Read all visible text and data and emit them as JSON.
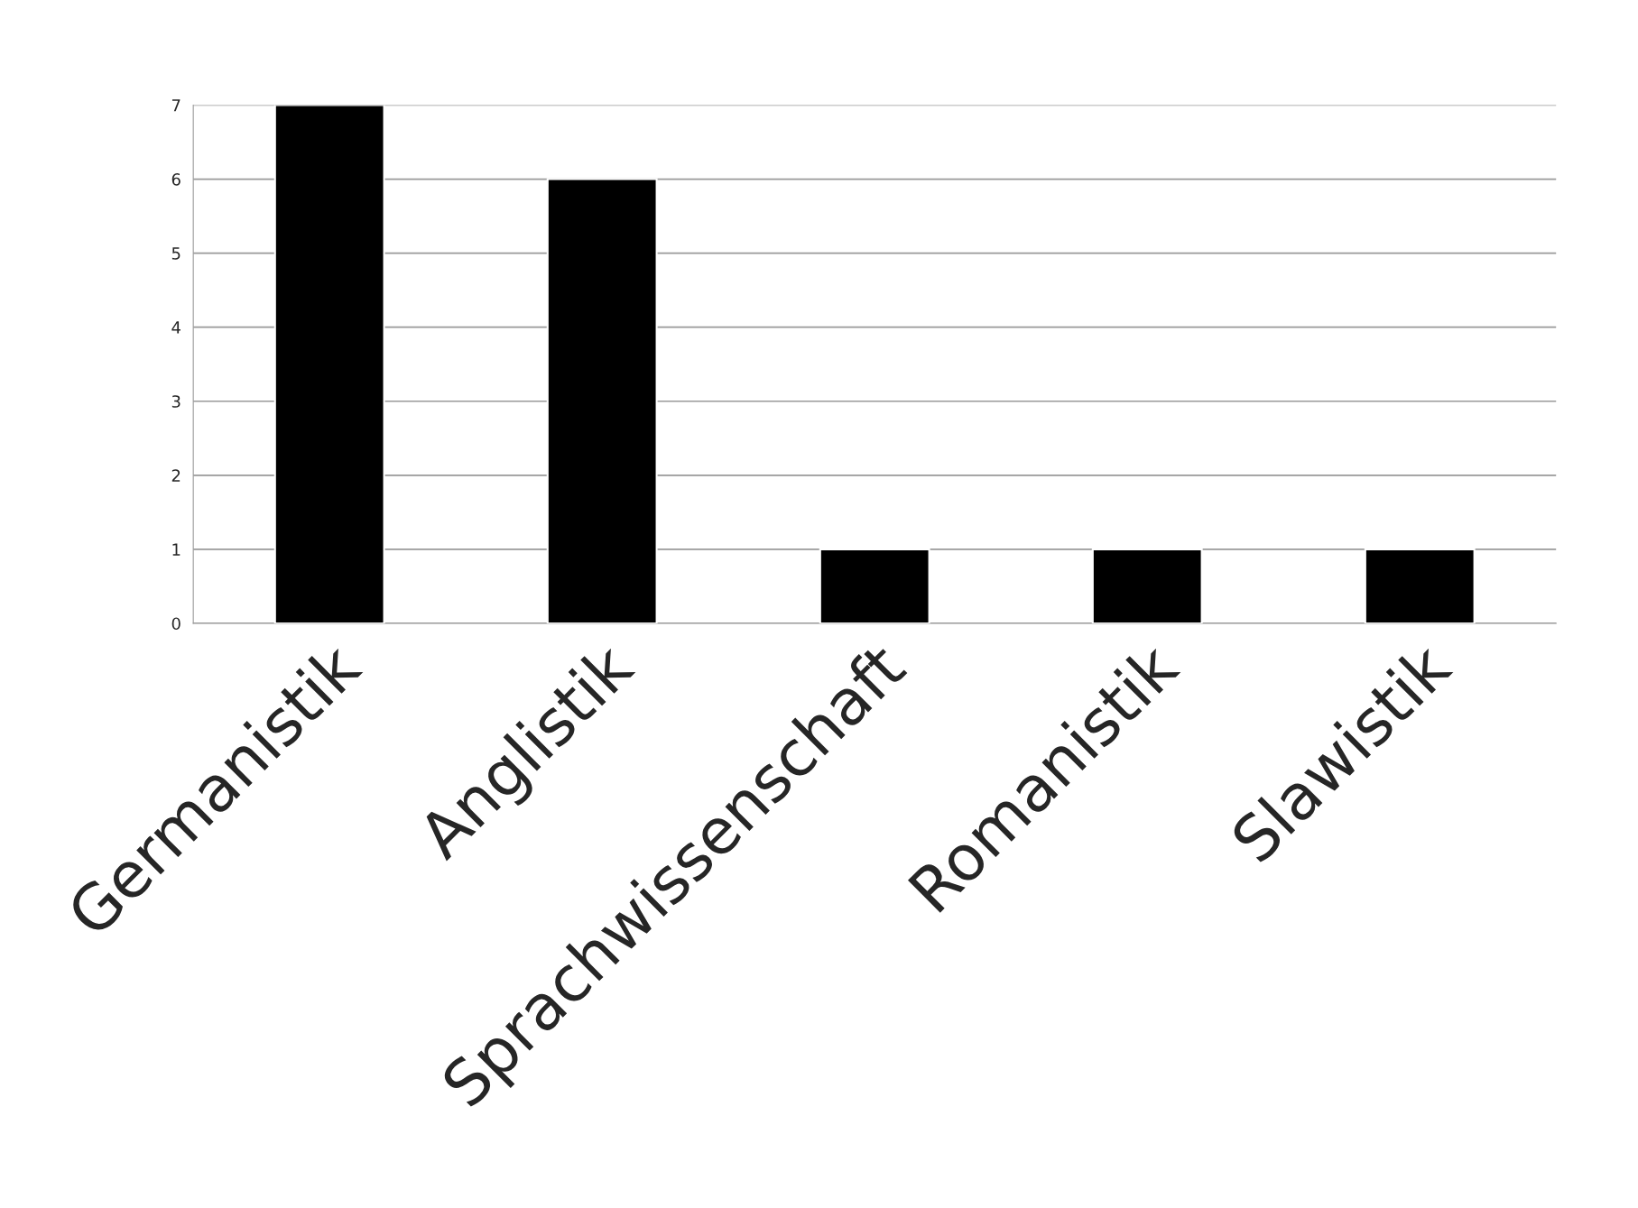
{
  "chart_data": {
    "type": "bar",
    "categories": [
      "Germanistik",
      "Anglistik",
      "Sprachwissenschaft",
      "Romanistik",
      "Slawistik"
    ],
    "values": [
      7,
      6,
      1,
      1,
      1
    ],
    "color": "#000000",
    "ylim": [
      0,
      7
    ],
    "yticks": [
      0,
      1,
      2,
      3,
      4,
      5,
      6,
      7
    ],
    "grid": "y",
    "legend": false
  }
}
